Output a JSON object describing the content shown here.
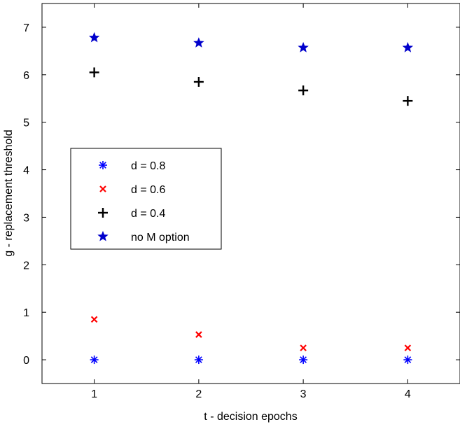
{
  "chart_data": {
    "type": "scatter",
    "xlabel": "t - decision epochs",
    "ylabel": "g - replacement threshold",
    "xlim": [
      0.5,
      4.5
    ],
    "ylim": [
      -0.5,
      7.5
    ],
    "xticks": [
      1,
      2,
      3,
      4
    ],
    "yticks": [
      0,
      1,
      2,
      3,
      4,
      5,
      6,
      7
    ],
    "x": [
      1,
      2,
      3,
      4
    ],
    "grid": false,
    "legend_position": "middle-left",
    "series": [
      {
        "name": "d = 0.8",
        "marker": "asterisk",
        "color": "#0000ff",
        "values": [
          0,
          0,
          0,
          0
        ]
      },
      {
        "name": "d = 0.6",
        "marker": "x",
        "color": "#ff0000",
        "values": [
          0.85,
          0.53,
          0.25,
          0.25
        ]
      },
      {
        "name": "d = 0.4",
        "marker": "plus",
        "color": "#000000",
        "values": [
          6.05,
          5.85,
          5.67,
          5.45
        ]
      },
      {
        "name": "no M option",
        "marker": "star",
        "color": "#0000cc",
        "values": [
          6.78,
          6.67,
          6.57,
          6.57
        ]
      }
    ]
  }
}
